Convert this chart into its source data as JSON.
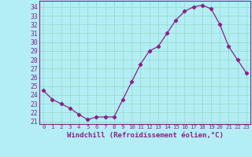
{
  "x": [
    0,
    1,
    2,
    3,
    4,
    5,
    6,
    7,
    8,
    9,
    10,
    11,
    12,
    13,
    14,
    15,
    16,
    17,
    18,
    19,
    20,
    21,
    22,
    23
  ],
  "y": [
    24.5,
    23.5,
    23.0,
    22.5,
    21.8,
    21.2,
    21.5,
    21.5,
    21.5,
    23.5,
    25.5,
    27.5,
    29.0,
    29.5,
    31.0,
    32.5,
    33.5,
    34.0,
    34.2,
    33.8,
    32.0,
    29.5,
    28.0,
    26.5
  ],
  "line_color": "#882288",
  "marker": "D",
  "marker_size": 2.2,
  "bg_color": "#b3eef5",
  "grid_color": "#99ddcc",
  "xlabel": "Windchill (Refroidissement éolien,°C)",
  "xlabel_fontsize": 6.5,
  "ylabel_ticks": [
    21,
    22,
    23,
    24,
    25,
    26,
    27,
    28,
    29,
    30,
    31,
    32,
    33,
    34
  ],
  "xtick_labels": [
    "0",
    "1",
    "2",
    "3",
    "4",
    "5",
    "6",
    "7",
    "8",
    "9",
    "10",
    "11",
    "12",
    "13",
    "14",
    "15",
    "16",
    "17",
    "18",
    "19",
    "20",
    "21",
    "22",
    "23"
  ],
  "ylim": [
    20.7,
    34.7
  ],
  "xlim": [
    -0.5,
    23.5
  ]
}
